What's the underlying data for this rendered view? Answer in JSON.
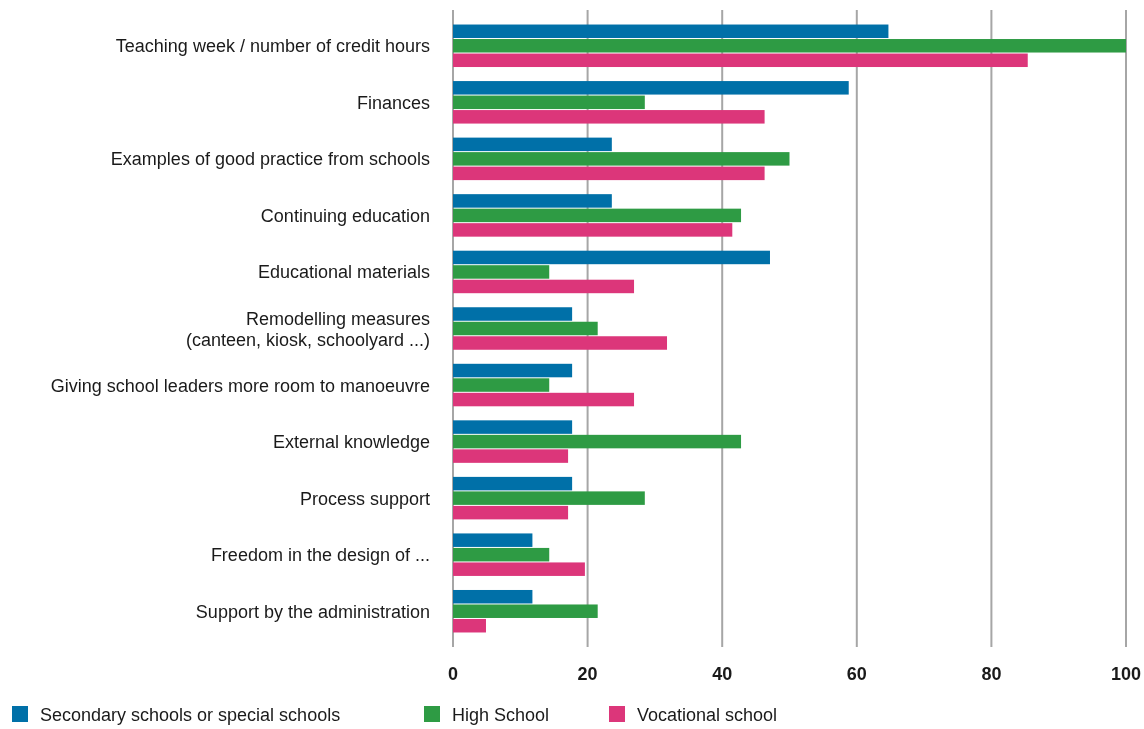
{
  "chart_data": {
    "type": "bar",
    "orientation": "horizontal",
    "categories": [
      "Teaching week / number of credit hours",
      "Finances",
      "Examples of good practice from schools",
      "Continuing education",
      "Educational materials",
      "Remodelling measures \n(canteen, kiosk, schoolyard ...)",
      "Giving school leaders more room to manoeuvre",
      "External knowledge",
      "Process support",
      "Freedom in the design of ...",
      "Support by the administration"
    ],
    "series": [
      {
        "name": "Secondary schools or special schools",
        "color": "#0070a8",
        "values": [
          64.7,
          58.8,
          23.6,
          23.6,
          47.1,
          17.7,
          17.7,
          17.7,
          17.7,
          11.8,
          11.8
        ]
      },
      {
        "name": "High School",
        "color": "#2e9b44",
        "values": [
          100,
          28.5,
          50,
          42.8,
          14.3,
          21.5,
          14.3,
          42.8,
          28.5,
          14.3,
          21.5
        ]
      },
      {
        "name": "Vocational school",
        "color": "#dc367a",
        "values": [
          85.4,
          46.3,
          46.3,
          41.5,
          26.9,
          31.8,
          26.9,
          17.1,
          17.1,
          19.6,
          4.9
        ]
      }
    ],
    "xlim": [
      0,
      100
    ],
    "xticks": [
      0,
      20,
      40,
      60,
      80,
      100
    ],
    "grid": "x",
    "legend": "bottom"
  }
}
